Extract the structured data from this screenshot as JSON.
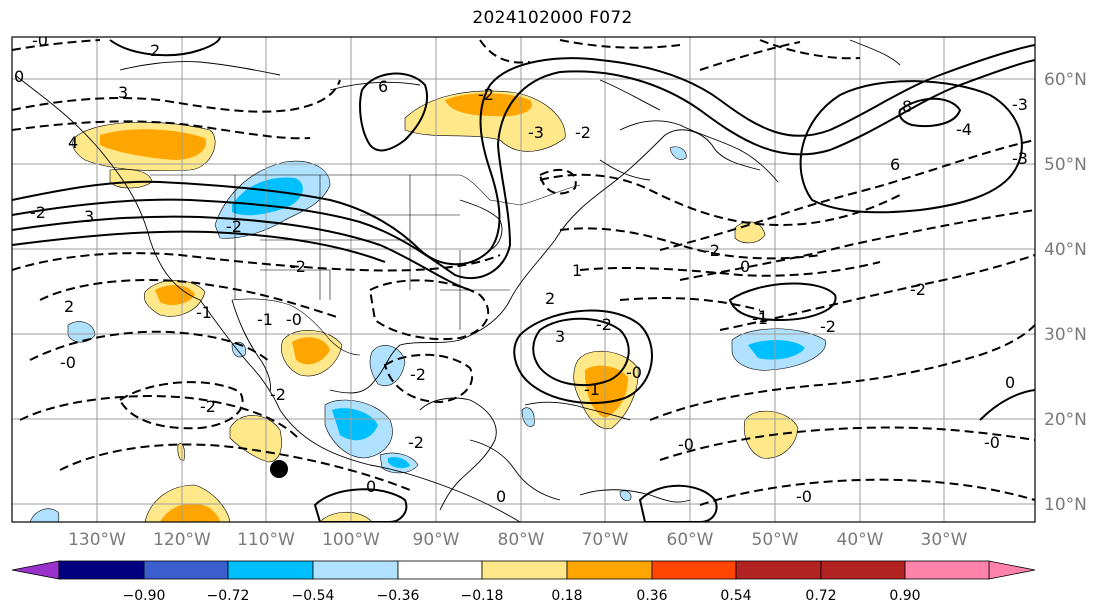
{
  "title": "2024102000 F072",
  "map": {
    "projection": "PlateCarree",
    "lon_range": [
      -140,
      -19
    ],
    "lat_range": [
      8,
      65
    ],
    "lon_labels": [
      "130°W",
      "120°W",
      "110°W",
      "100°W",
      "90°W",
      "80°W",
      "70°W",
      "60°W",
      "50°W",
      "40°W",
      "30°W"
    ],
    "lat_labels": [
      "60°N",
      "50°N",
      "40°N",
      "30°N",
      "20°N",
      "10°N"
    ],
    "gridline_color": "#9e9e9e",
    "label_color": "#7a7a7a"
  },
  "colorbar": {
    "colors": [
      "#9932cc",
      "#000080",
      "#3a5fcd",
      "#00bfff",
      "#b0e2ff",
      "#ffffff",
      "#ffe88a",
      "#ffa500",
      "#ff4500",
      "#b22222",
      "#ff82ab"
    ],
    "labels": [
      "−0.90",
      "−0.72",
      "−0.54",
      "−0.36",
      "−0.18",
      "0.18",
      "0.36",
      "0.54",
      "0.72",
      "0.90"
    ]
  },
  "contour_labels": [
    "2",
    "-0",
    "3",
    "4",
    "0",
    "6",
    "-3",
    "-2",
    "3",
    "-2",
    "2",
    "8",
    "6",
    "-3",
    "-2",
    "1",
    "-4",
    "-3",
    "-2",
    "-1",
    "-2",
    "0",
    "-2",
    "-2",
    "-1",
    "-0",
    "3",
    "-1",
    "-0",
    "-2",
    "-1",
    "-2",
    "-0",
    "-2",
    "2",
    "1",
    "-2",
    "0",
    "-2",
    "-2",
    "-0",
    "0",
    "-0",
    "0",
    "-0"
  ],
  "marker": {
    "label": "storm-center-marker"
  }
}
